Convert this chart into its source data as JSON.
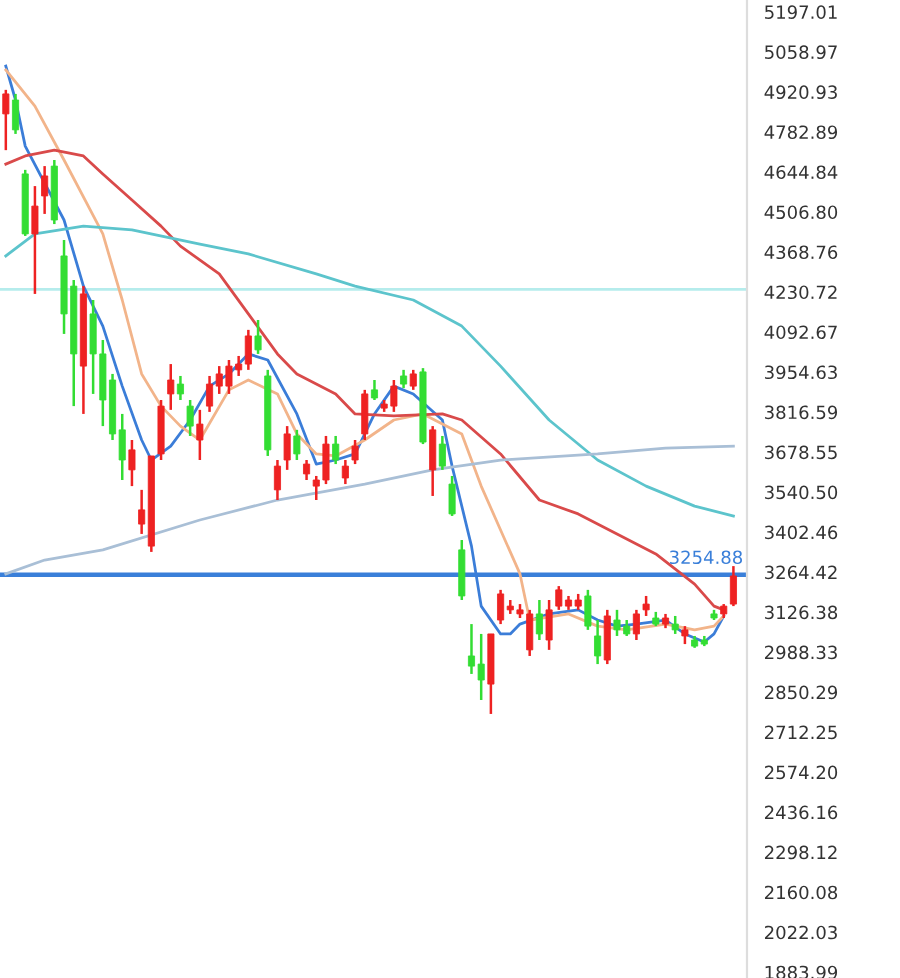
{
  "chart_data": {
    "type": "candlestick",
    "categories": [
      null,
      null,
      null,
      null,
      null,
      null,
      null,
      null,
      null,
      null,
      null,
      null,
      null,
      null,
      null,
      null,
      null,
      null,
      null,
      null,
      null,
      null,
      null,
      null,
      null,
      null,
      null,
      null,
      null,
      null,
      null,
      null,
      null,
      null,
      null,
      null,
      null,
      null,
      null,
      null,
      null,
      null,
      null,
      null,
      null,
      null,
      null,
      null,
      null,
      null,
      null,
      null,
      null,
      null,
      null,
      null,
      null,
      null,
      null,
      null,
      null,
      null,
      null,
      null,
      null,
      null,
      null,
      null,
      null,
      null,
      null,
      null,
      null,
      null,
      null,
      null
    ],
    "ohlc": [
      [
        4845,
        4928,
        4720,
        4914
      ],
      [
        4893,
        4914,
        4776,
        4790
      ],
      [
        4638,
        4652,
        4424,
        4431
      ],
      [
        4431,
        4596,
        4224,
        4527
      ],
      [
        4562,
        4665,
        4500,
        4631
      ],
      [
        4665,
        4686,
        4465,
        4479
      ],
      [
        4355,
        4410,
        4086,
        4155
      ],
      [
        4251,
        4272,
        3837,
        4017
      ],
      [
        3975,
        4251,
        3810,
        4224
      ],
      [
        4155,
        4203,
        3879,
        4017
      ],
      [
        4017,
        4065,
        3768,
        3858
      ],
      [
        3927,
        3948,
        3720,
        3741
      ],
      [
        3755,
        3810,
        3582,
        3651
      ],
      [
        3617,
        3720,
        3561,
        3686
      ],
      [
        3430,
        3548,
        3396,
        3479
      ],
      [
        3354,
        3665,
        3334,
        3665
      ],
      [
        3672,
        3858,
        3651,
        3837
      ],
      [
        3879,
        3982,
        3824,
        3927
      ],
      [
        3913,
        3941,
        3858,
        3879
      ],
      [
        3837,
        3858,
        3734,
        3768
      ],
      [
        3720,
        3824,
        3651,
        3775
      ],
      [
        3837,
        3941,
        3817,
        3913
      ],
      [
        3906,
        3975,
        3879,
        3948
      ],
      [
        3906,
        3996,
        3879,
        3975
      ],
      [
        3962,
        4010,
        3941,
        3982
      ],
      [
        3982,
        4100,
        3962,
        4079
      ],
      [
        4079,
        4134,
        4017,
        4031
      ],
      [
        3941,
        3962,
        3665,
        3686
      ],
      [
        3548,
        3651,
        3513,
        3630
      ],
      [
        3651,
        3768,
        3617,
        3741
      ],
      [
        3734,
        3755,
        3651,
        3672
      ],
      [
        3603,
        3651,
        3582,
        3637
      ],
      [
        3561,
        3596,
        3513,
        3582
      ],
      [
        3582,
        3734,
        3568,
        3706
      ],
      [
        3706,
        3734,
        3637,
        3651
      ],
      [
        3589,
        3651,
        3568,
        3630
      ],
      [
        3651,
        3720,
        3637,
        3699
      ],
      [
        3741,
        3893,
        3720,
        3879
      ],
      [
        3893,
        3927,
        3858,
        3865
      ],
      [
        3830,
        3858,
        3817,
        3844
      ],
      [
        3837,
        3927,
        3817,
        3906
      ],
      [
        3941,
        3962,
        3899,
        3913
      ],
      [
        3906,
        3962,
        3893,
        3948
      ],
      [
        3955,
        3968,
        3706,
        3713
      ],
      [
        3617,
        3768,
        3527,
        3755
      ],
      [
        3706,
        3734,
        3617,
        3630
      ],
      [
        3568,
        3596,
        3458,
        3465
      ],
      [
        3341,
        3375,
        3168,
        3182
      ],
      [
        2975,
        3085,
        2913,
        2940
      ],
      [
        2947,
        3051,
        2823,
        2892
      ],
      [
        2878,
        3051,
        2775,
        3051
      ],
      [
        3099,
        3203,
        3085,
        3189
      ],
      [
        3134,
        3168,
        3120,
        3147
      ],
      [
        3120,
        3154,
        3106,
        3134
      ],
      [
        2996,
        3134,
        2975,
        3120
      ],
      [
        3120,
        3168,
        3030,
        3051
      ],
      [
        3030,
        3168,
        2996,
        3134
      ],
      [
        3147,
        3216,
        3134,
        3203
      ],
      [
        3147,
        3182,
        3134,
        3168
      ],
      [
        3147,
        3189,
        3134,
        3168
      ],
      [
        3182,
        3203,
        3065,
        3078
      ],
      [
        3044,
        3099,
        2947,
        2975
      ],
      [
        2961,
        3134,
        2947,
        3113
      ],
      [
        3099,
        3134,
        3044,
        3065
      ],
      [
        3078,
        3099,
        3044,
        3051
      ],
      [
        3051,
        3134,
        3030,
        3120
      ],
      [
        3134,
        3182,
        3113,
        3154
      ],
      [
        3106,
        3127,
        3078,
        3085
      ],
      [
        3085,
        3120,
        3071,
        3106
      ],
      [
        3085,
        3113,
        3051,
        3065
      ],
      [
        3044,
        3078,
        3016,
        3065
      ],
      [
        3030,
        3044,
        3003,
        3009
      ],
      [
        3030,
        3044,
        3009,
        3016
      ],
      [
        3120,
        3134,
        3099,
        3106
      ],
      [
        3120,
        3154,
        3106,
        3147
      ],
      [
        3154,
        3285,
        3147,
        3251
      ]
    ],
    "colors": [
      "#ee2222",
      "#33dd33",
      "#33dd33",
      "#ee2222",
      "#ee2222",
      "#33dd33",
      "#33dd33",
      "#33dd33",
      "#ee2222",
      "#33dd33",
      "#33dd33",
      "#33dd33",
      "#33dd33",
      "#ee2222",
      "#ee2222",
      "#ee2222",
      "#ee2222",
      "#ee2222",
      "#33dd33",
      "#33dd33",
      "#ee2222",
      "#ee2222",
      "#ee2222",
      "#ee2222",
      "#ee2222",
      "#ee2222",
      "#33dd33",
      "#33dd33",
      "#ee2222",
      "#ee2222",
      "#33dd33",
      "#ee2222",
      "#ee2222",
      "#ee2222",
      "#33dd33",
      "#ee2222",
      "#ee2222",
      "#ee2222",
      "#33dd33",
      "#ee2222",
      "#ee2222",
      "#33dd33",
      "#ee2222",
      "#33dd33",
      "#ee2222",
      "#33dd33",
      "#33dd33",
      "#33dd33",
      "#33dd33",
      "#33dd33",
      "#ee2222",
      "#ee2222",
      "#ee2222",
      "#ee2222",
      "#ee2222",
      "#33dd33",
      "#ee2222",
      "#ee2222",
      "#ee2222",
      "#ee2222",
      "#33dd33",
      "#33dd33",
      "#ee2222",
      "#33dd33",
      "#33dd33",
      "#ee2222",
      "#ee2222",
      "#33dd33",
      "#ee2222",
      "#33dd33",
      "#ee2222",
      "#33dd33",
      "#33dd33",
      "#33dd33",
      "#ee2222",
      "#ee2222"
    ],
    "series": [
      {
        "type": "line",
        "color": "#3b7dd8",
        "values": [
          5010,
          4893,
          4734,
          null,
          null,
          null,
          4479,
          null,
          4251,
          null,
          4113,
          null,
          3906,
          null,
          3720,
          3651,
          null,
          3699,
          null,
          3789,
          null,
          3906,
          null,
          3948,
          null,
          4017,
          null,
          3996,
          null,
          null,
          3810,
          null,
          3637,
          null,
          3651,
          null,
          3672,
          null,
          3810,
          null,
          3906,
          null,
          3879,
          null,
          null,
          3789,
          3630,
          null,
          3354,
          3147,
          null,
          3051,
          3051,
          3085,
          null,
          null,
          3120,
          null,
          null,
          3134,
          null,
          3099,
          null,
          3078,
          null,
          3085,
          null,
          null,
          3099,
          null,
          3051,
          null,
          3023,
          3051,
          3113,
          null
        ]
      },
      {
        "type": "line",
        "color": "#f2b48a",
        "values": [
          4997,
          null,
          null,
          4872,
          null,
          null,
          4686,
          null,
          null,
          null,
          4431,
          null,
          4203,
          null,
          3948,
          null,
          3837,
          null,
          3768,
          null,
          3720,
          null,
          null,
          3893,
          null,
          3927,
          null,
          null,
          3879,
          null,
          3741,
          null,
          3672,
          null,
          3665,
          null,
          null,
          3720,
          null,
          null,
          3789,
          null,
          null,
          3810,
          null,
          null,
          null,
          3741,
          null,
          3561,
          null,
          null,
          null,
          3258,
          3099,
          null,
          null,
          null,
          3120,
          null,
          null,
          3078,
          null,
          null,
          3065,
          null,
          null,
          null,
          3085,
          null,
          null,
          3065,
          null,
          3078,
          3113,
          null
        ]
      },
      {
        "type": "line",
        "color": "#d94a4a",
        "values": [
          4672,
          null,
          4700,
          null,
          null,
          4720,
          null,
          null,
          4700,
          null,
          4638,
          null,
          null,
          4548,
          null,
          null,
          4458,
          null,
          4389,
          null,
          null,
          null,
          4293,
          null,
          null,
          4155,
          null,
          null,
          4017,
          null,
          3948,
          null,
          null,
          null,
          3879,
          null,
          3810,
          null,
          null,
          null,
          3803,
          null,
          null,
          null,
          null,
          3810,
          null,
          3789,
          null,
          null,
          null,
          3672,
          null,
          null,
          null,
          3513,
          null,
          null,
          null,
          3465,
          null,
          null,
          null,
          3396,
          null,
          null,
          null,
          3327,
          null,
          null,
          null,
          3223,
          null,
          3147,
          3134,
          null
        ]
      },
      {
        "type": "line",
        "color": "#5cc4cc",
        "values": [
          4355,
          null,
          null,
          4431,
          null,
          null,
          null,
          null,
          4458,
          null,
          null,
          null,
          null,
          4445,
          null,
          null,
          null,
          null,
          null,
          null,
          4396,
          null,
          null,
          null,
          null,
          4362,
          null,
          null,
          null,
          null,
          null,
          null,
          4293,
          null,
          null,
          null,
          4251,
          null,
          null,
          null,
          null,
          null,
          4203,
          null,
          null,
          null,
          null,
          4113,
          null,
          null,
          null,
          3975,
          null,
          null,
          null,
          null,
          3789,
          null,
          null,
          null,
          null,
          3651,
          null,
          null,
          null,
          null,
          3561,
          null,
          null,
          null,
          null,
          3492,
          null,
          null,
          null,
          3458
        ]
      },
      {
        "type": "line",
        "color": "#a9bfd6",
        "values": [
          3258,
          null,
          null,
          null,
          3306,
          null,
          null,
          null,
          null,
          null,
          3341,
          null,
          null,
          null,
          null,
          null,
          null,
          null,
          null,
          null,
          3444,
          null,
          null,
          null,
          null,
          null,
          null,
          null,
          3513,
          null,
          null,
          null,
          null,
          null,
          null,
          null,
          null,
          3568,
          null,
          null,
          null,
          null,
          null,
          null,
          3617,
          null,
          null,
          null,
          null,
          null,
          null,
          3651,
          null,
          null,
          null,
          null,
          null,
          null,
          null,
          null,
          null,
          3672,
          null,
          null,
          null,
          null,
          null,
          null,
          3692,
          null,
          null,
          null,
          null,
          null,
          null,
          3699
        ]
      }
    ],
    "ref_lines": [
      {
        "axis": "y",
        "value": 3254.88,
        "label": "3254.88",
        "color": "#3a7fd9"
      },
      {
        "axis": "y",
        "value": 4240,
        "label": null,
        "color": "#b5ecec"
      }
    ],
    "ylim": [
      1864,
      5238
    ],
    "yticks": [
      5197.01,
      5058.97,
      4920.93,
      4782.89,
      4644.84,
      {
        "value": 4506.8,
        "label": "4506.80"
      },
      4368.76,
      4230.72,
      4092.67,
      3954.63,
      3816.59,
      3678.55,
      {
        "value": 3540.5,
        "label": "3540.50"
      },
      3402.46,
      3264.42,
      3126.38,
      2988.33,
      2850.29,
      2712.25,
      {
        "value": 2574.2,
        "label": "2574.20"
      },
      2436.16,
      2298.12,
      2160.08,
      2022.03,
      1883.99
    ],
    "tick_labels": "y"
  }
}
